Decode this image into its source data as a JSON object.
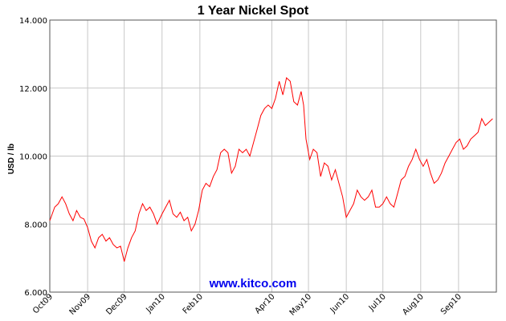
{
  "chart_data": {
    "type": "line",
    "title": "1 Year Nickel Spot",
    "xlabel": "",
    "ylabel": "USD / lb",
    "ylim": [
      6.0,
      14.0
    ],
    "yticks": [
      "6.000",
      "8.000",
      "10.000",
      "12.000",
      "14.000"
    ],
    "ytick_values": [
      6,
      8,
      10,
      12,
      14
    ],
    "xticks": [
      "Oct09",
      "Nov09",
      "Dec09",
      "Jan10",
      "Feb10",
      "Apr10",
      "May10",
      "Jun10",
      "Jul10",
      "Aug10",
      "Sep10"
    ],
    "xtick_days": [
      0,
      31,
      61,
      92,
      123,
      182,
      212,
      243,
      273,
      304,
      335
    ],
    "x_end_day": 366,
    "grid": true,
    "watermark": "www.kitco.com",
    "line_color": "#ff0000",
    "series": [
      {
        "points": [
          [
            "2009-10-01",
            8.1
          ],
          [
            "2009-10-05",
            8.5
          ],
          [
            "2009-10-08",
            8.6
          ],
          [
            "2009-10-11",
            8.8
          ],
          [
            "2009-10-14",
            8.6
          ],
          [
            "2009-10-17",
            8.3
          ],
          [
            "2009-10-20",
            8.1
          ],
          [
            "2009-10-23",
            8.4
          ],
          [
            "2009-10-26",
            8.2
          ],
          [
            "2009-10-29",
            8.15
          ],
          [
            "2009-11-01",
            7.9
          ],
          [
            "2009-11-04",
            7.5
          ],
          [
            "2009-11-07",
            7.3
          ],
          [
            "2009-11-10",
            7.6
          ],
          [
            "2009-11-13",
            7.7
          ],
          [
            "2009-11-16",
            7.5
          ],
          [
            "2009-11-19",
            7.6
          ],
          [
            "2009-11-22",
            7.4
          ],
          [
            "2009-11-25",
            7.3
          ],
          [
            "2009-11-28",
            7.35
          ],
          [
            "2009-12-01",
            6.9
          ],
          [
            "2009-12-04",
            7.3
          ],
          [
            "2009-12-07",
            7.6
          ],
          [
            "2009-12-10",
            7.8
          ],
          [
            "2009-12-13",
            8.3
          ],
          [
            "2009-12-16",
            8.6
          ],
          [
            "2009-12-19",
            8.4
          ],
          [
            "2009-12-22",
            8.5
          ],
          [
            "2009-12-25",
            8.3
          ],
          [
            "2009-12-28",
            8.0
          ],
          [
            "2010-01-01",
            8.3
          ],
          [
            "2010-01-04",
            8.5
          ],
          [
            "2010-01-07",
            8.7
          ],
          [
            "2010-01-10",
            8.3
          ],
          [
            "2010-01-13",
            8.2
          ],
          [
            "2010-01-16",
            8.35
          ],
          [
            "2010-01-19",
            8.1
          ],
          [
            "2010-01-22",
            8.2
          ],
          [
            "2010-01-25",
            7.8
          ],
          [
            "2010-01-28",
            8.0
          ],
          [
            "2010-01-31",
            8.4
          ],
          [
            "2010-02-03",
            9.0
          ],
          [
            "2010-02-06",
            9.2
          ],
          [
            "2010-02-09",
            9.1
          ],
          [
            "2010-02-12",
            9.4
          ],
          [
            "2010-02-15",
            9.6
          ],
          [
            "2010-02-18",
            10.1
          ],
          [
            "2010-02-21",
            10.2
          ],
          [
            "2010-02-24",
            10.1
          ],
          [
            "2010-02-27",
            9.5
          ],
          [
            "2010-03-02",
            9.7
          ],
          [
            "2010-03-05",
            10.2
          ],
          [
            "2010-03-08",
            10.1
          ],
          [
            "2010-03-11",
            10.2
          ],
          [
            "2010-03-14",
            10.0
          ],
          [
            "2010-03-17",
            10.4
          ],
          [
            "2010-03-20",
            10.8
          ],
          [
            "2010-03-23",
            11.2
          ],
          [
            "2010-03-26",
            11.4
          ],
          [
            "2010-03-29",
            11.5
          ],
          [
            "2010-04-01",
            11.4
          ],
          [
            "2010-04-04",
            11.7
          ],
          [
            "2010-04-07",
            12.2
          ],
          [
            "2010-04-10",
            11.8
          ],
          [
            "2010-04-13",
            12.3
          ],
          [
            "2010-04-16",
            12.2
          ],
          [
            "2010-04-19",
            11.6
          ],
          [
            "2010-04-22",
            11.5
          ],
          [
            "2010-04-25",
            11.9
          ],
          [
            "2010-04-27",
            11.5
          ],
          [
            "2010-04-29",
            10.5
          ],
          [
            "2010-05-02",
            9.9
          ],
          [
            "2010-05-05",
            10.2
          ],
          [
            "2010-05-08",
            10.1
          ],
          [
            "2010-05-11",
            9.4
          ],
          [
            "2010-05-14",
            9.8
          ],
          [
            "2010-05-17",
            9.7
          ],
          [
            "2010-05-20",
            9.3
          ],
          [
            "2010-05-23",
            9.6
          ],
          [
            "2010-05-26",
            9.2
          ],
          [
            "2010-05-29",
            8.8
          ],
          [
            "2010-06-01",
            8.2
          ],
          [
            "2010-06-04",
            8.4
          ],
          [
            "2010-06-07",
            8.6
          ],
          [
            "2010-06-10",
            9.0
          ],
          [
            "2010-06-13",
            8.8
          ],
          [
            "2010-06-16",
            8.7
          ],
          [
            "2010-06-19",
            8.8
          ],
          [
            "2010-06-22",
            9.0
          ],
          [
            "2010-06-25",
            8.5
          ],
          [
            "2010-06-28",
            8.5
          ],
          [
            "2010-07-01",
            8.6
          ],
          [
            "2010-07-04",
            8.8
          ],
          [
            "2010-07-07",
            8.6
          ],
          [
            "2010-07-10",
            8.5
          ],
          [
            "2010-07-13",
            8.9
          ],
          [
            "2010-07-16",
            9.3
          ],
          [
            "2010-07-19",
            9.4
          ],
          [
            "2010-07-22",
            9.7
          ],
          [
            "2010-07-25",
            9.9
          ],
          [
            "2010-07-28",
            10.2
          ],
          [
            "2010-07-31",
            9.9
          ],
          [
            "2010-08-03",
            9.7
          ],
          [
            "2010-08-06",
            9.9
          ],
          [
            "2010-08-09",
            9.5
          ],
          [
            "2010-08-12",
            9.2
          ],
          [
            "2010-08-15",
            9.3
          ],
          [
            "2010-08-18",
            9.5
          ],
          [
            "2010-08-21",
            9.8
          ],
          [
            "2010-08-24",
            10.0
          ],
          [
            "2010-08-27",
            10.2
          ],
          [
            "2010-08-30",
            10.4
          ],
          [
            "2010-09-02",
            10.5
          ],
          [
            "2010-09-05",
            10.2
          ],
          [
            "2010-09-08",
            10.3
          ],
          [
            "2010-09-11",
            10.5
          ],
          [
            "2010-09-14",
            10.6
          ],
          [
            "2010-09-17",
            10.7
          ],
          [
            "2010-09-20",
            11.1
          ],
          [
            "2010-09-23",
            10.9
          ],
          [
            "2010-09-26",
            11.0
          ],
          [
            "2010-09-29",
            11.1
          ]
        ]
      }
    ]
  }
}
